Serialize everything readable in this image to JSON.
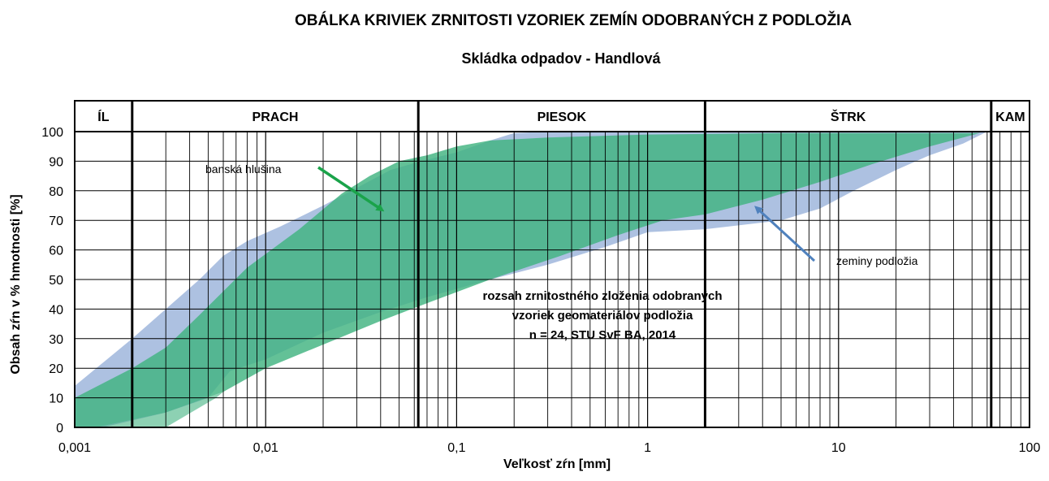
{
  "chart_data": {
    "type": "area",
    "title": "OBÁLKA  KRIVIEK   ZRNITOSTI VZORIEK  ZEMÍN ODOBRANÝCH Z PODLOŽIA",
    "subtitle": "Skládka odpadov - Handlová",
    "xlabel": "Veľkosť zŕn   [mm]",
    "ylabel": "Obsah zŕn v % hmotnosti   [%]",
    "xscale": "log",
    "xlim": [
      0.001,
      100
    ],
    "ylim": [
      0,
      100
    ],
    "x_tick_labels": [
      "0,001",
      "0,01",
      "0,1",
      "1",
      "10",
      "100"
    ],
    "y_ticks": [
      0,
      10,
      20,
      30,
      40,
      50,
      60,
      70,
      80,
      90,
      100
    ],
    "classes": [
      {
        "label": "ÍL",
        "from": 0.001,
        "to": 0.002
      },
      {
        "label": "PRACH",
        "from": 0.002,
        "to": 0.063
      },
      {
        "label": "PIESOK",
        "from": 0.063,
        "to": 2
      },
      {
        "label": "ŠTRK",
        "from": 2,
        "to": 63
      },
      {
        "label": "KAM",
        "from": 63,
        "to": 100
      }
    ],
    "series": [
      {
        "name": "zeminy  podložia",
        "color": "#9fb6dc",
        "upper": [
          [
            0.001,
            14
          ],
          [
            0.002,
            30
          ],
          [
            0.003,
            40
          ],
          [
            0.0045,
            50
          ],
          [
            0.006,
            58
          ],
          [
            0.008,
            63
          ],
          [
            0.012,
            68
          ],
          [
            0.02,
            75
          ],
          [
            0.03,
            81
          ],
          [
            0.045,
            87
          ],
          [
            0.065,
            90
          ],
          [
            0.1,
            93
          ],
          [
            0.15,
            97
          ],
          [
            0.2,
            99.5
          ],
          [
            0.3,
            100
          ],
          [
            60,
            100
          ]
        ],
        "lower": [
          [
            0.001,
            0
          ],
          [
            0.0014,
            0
          ],
          [
            0.003,
            5
          ],
          [
            0.005,
            10
          ],
          [
            0.0065,
            19
          ],
          [
            0.01,
            23
          ],
          [
            0.02,
            32
          ],
          [
            0.04,
            39
          ],
          [
            0.07,
            44
          ],
          [
            0.15,
            50
          ],
          [
            0.3,
            55
          ],
          [
            0.6,
            61
          ],
          [
            1,
            66
          ],
          [
            2,
            67
          ],
          [
            5,
            70
          ],
          [
            8,
            74
          ],
          [
            12,
            80
          ],
          [
            20,
            87
          ],
          [
            30,
            92
          ],
          [
            45,
            96
          ],
          [
            60,
            100
          ]
        ]
      },
      {
        "name": "banská  hlušina",
        "color": "#41b380",
        "upper": [
          [
            0.001,
            10
          ],
          [
            0.002,
            20
          ],
          [
            0.003,
            27
          ],
          [
            0.0045,
            38
          ],
          [
            0.008,
            54
          ],
          [
            0.015,
            67
          ],
          [
            0.025,
            79
          ],
          [
            0.035,
            85
          ],
          [
            0.05,
            90
          ],
          [
            0.07,
            92
          ],
          [
            0.1,
            95
          ],
          [
            0.15,
            97
          ],
          [
            0.3,
            98
          ],
          [
            1,
            99
          ],
          [
            5,
            99.5
          ],
          [
            55,
            99.5
          ]
        ],
        "lower": [
          [
            0.001,
            0
          ],
          [
            0.0013,
            0
          ],
          [
            0.003,
            5
          ],
          [
            0.006,
            12
          ],
          [
            0.01,
            20
          ],
          [
            0.02,
            28
          ],
          [
            0.04,
            36
          ],
          [
            0.07,
            42
          ],
          [
            0.15,
            50
          ],
          [
            0.35,
            58
          ],
          [
            0.7,
            65
          ],
          [
            1.2,
            70
          ],
          [
            2,
            72
          ],
          [
            4,
            77
          ],
          [
            8,
            83
          ],
          [
            15,
            89
          ],
          [
            30,
            95
          ],
          [
            55,
            99.5
          ]
        ]
      }
    ],
    "extra_lower_band": {
      "name": "",
      "color": "#41b380",
      "upper": [
        [
          0.001,
          0
        ],
        [
          0.0013,
          0
        ],
        [
          0.003,
          5
        ],
        [
          0.006,
          12
        ]
      ],
      "lower": [
        [
          0.002,
          0
        ],
        [
          0.003,
          0
        ],
        [
          0.0055,
          10
        ],
        [
          0.006,
          12
        ]
      ]
    },
    "annotations": [
      {
        "text": "banská  hlušina",
        "arrow_color": "#1aa34a"
      },
      {
        "text": "zeminy  podložia",
        "arrow_color": "#4f81bd"
      },
      {
        "text_lines": [
          "rozsah  zrnitostného  zloženia  odobraných",
          "vzoriek geomateriálov podložia",
          "n = 24, STU SvF BA, 2014"
        ]
      }
    ]
  }
}
